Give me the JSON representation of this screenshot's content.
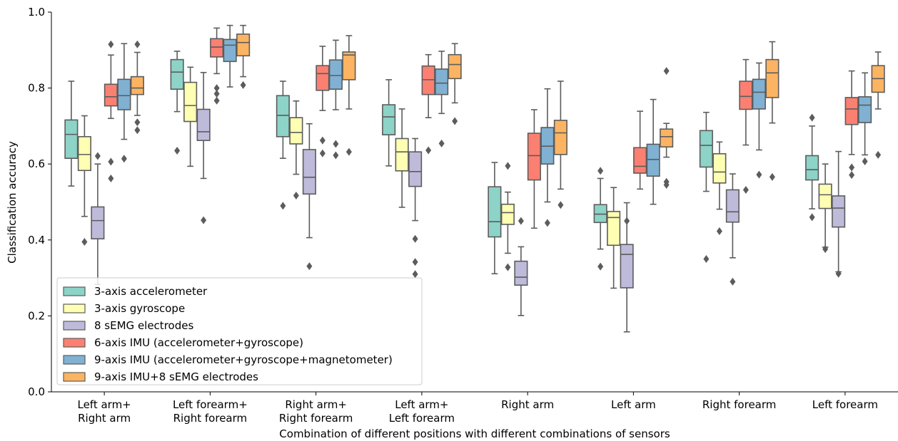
{
  "chart_data": {
    "type": "box",
    "title": "",
    "xlabel": "Combination of different positions with different combinations of sensors",
    "ylabel": "Classification accuracy",
    "ylim": [
      0.0,
      1.0
    ],
    "yticks": [
      "0.0",
      "0.2",
      "0.4",
      "0.6",
      "0.8",
      "1.0"
    ],
    "grid": false,
    "legend_position": "lower-left",
    "categories": [
      [
        "Left arm+",
        "Right arm"
      ],
      [
        "Left forearm+",
        "Right forearm"
      ],
      [
        "Right arm+",
        "Right forearm"
      ],
      [
        "Left arm+",
        "Left forearm"
      ],
      [
        "Right arm"
      ],
      [
        "Left arm"
      ],
      [
        "Right forearm"
      ],
      [
        "Left forearm"
      ]
    ],
    "series": [
      {
        "name": "3-axis accelerometer",
        "color": "#8dd3c7",
        "boxes": [
          {
            "q1": 0.615,
            "median": 0.678,
            "q3": 0.716,
            "whisker_low": 0.542,
            "whisker_high": 0.818,
            "outliers": []
          },
          {
            "q1": 0.797,
            "median": 0.842,
            "q3": 0.875,
            "whisker_low": 0.738,
            "whisker_high": 0.897,
            "outliers": [
              0.635
            ]
          },
          {
            "q1": 0.672,
            "median": 0.728,
            "q3": 0.78,
            "whisker_low": 0.615,
            "whisker_high": 0.818,
            "outliers": [
              0.49
            ]
          },
          {
            "q1": 0.677,
            "median": 0.724,
            "q3": 0.756,
            "whisker_low": 0.595,
            "whisker_high": 0.822,
            "outliers": []
          },
          {
            "q1": 0.408,
            "median": 0.448,
            "q3": 0.54,
            "whisker_low": 0.311,
            "whisker_high": 0.604,
            "outliers": []
          },
          {
            "q1": 0.446,
            "median": 0.468,
            "q3": 0.493,
            "whisker_low": 0.376,
            "whisker_high": 0.562,
            "outliers": [
              0.582,
              0.33
            ]
          },
          {
            "q1": 0.592,
            "median": 0.649,
            "q3": 0.688,
            "whisker_low": 0.528,
            "whisker_high": 0.736,
            "outliers": [
              0.35
            ]
          },
          {
            "q1": 0.558,
            "median": 0.585,
            "q3": 0.622,
            "whisker_low": 0.482,
            "whisker_high": 0.7,
            "outliers": [
              0.722,
              0.46
            ]
          }
        ]
      },
      {
        "name": "3-axis gyroscope",
        "color": "#ffffb3",
        "boxes": [
          {
            "q1": 0.583,
            "median": 0.625,
            "q3": 0.672,
            "whisker_low": 0.462,
            "whisker_high": 0.727,
            "outliers": [
              0.395
            ]
          },
          {
            "q1": 0.712,
            "median": 0.754,
            "q3": 0.815,
            "whisker_low": 0.594,
            "whisker_high": 0.855,
            "outliers": []
          },
          {
            "q1": 0.653,
            "median": 0.683,
            "q3": 0.722,
            "whisker_low": 0.573,
            "whisker_high": 0.766,
            "outliers": [
              0.517
            ]
          },
          {
            "q1": 0.582,
            "median": 0.632,
            "q3": 0.667,
            "whisker_low": 0.486,
            "whisker_high": 0.745,
            "outliers": []
          },
          {
            "q1": 0.441,
            "median": 0.472,
            "q3": 0.494,
            "whisker_low": 0.365,
            "whisker_high": 0.526,
            "outliers": [
              0.595,
              0.328
            ]
          },
          {
            "q1": 0.386,
            "median": 0.459,
            "q3": 0.475,
            "whisker_low": 0.273,
            "whisker_high": 0.538,
            "outliers": []
          },
          {
            "q1": 0.55,
            "median": 0.579,
            "q3": 0.627,
            "whisker_low": 0.481,
            "whisker_high": 0.658,
            "outliers": [
              0.423
            ]
          },
          {
            "q1": 0.483,
            "median": 0.519,
            "q3": 0.547,
            "whisker_low": 0.381,
            "whisker_high": 0.6,
            "outliers": [
              0.376
            ]
          }
        ]
      },
      {
        "name": "8 sEMG electrodes",
        "color": "#bebada",
        "boxes": [
          {
            "q1": 0.403,
            "median": 0.451,
            "q3": 0.487,
            "whisker_low": 0.283,
            "whisker_high": 0.6,
            "outliers": [
              0.621
            ]
          },
          {
            "q1": 0.662,
            "median": 0.685,
            "q3": 0.744,
            "whisker_low": 0.562,
            "whisker_high": 0.841,
            "outliers": [
              0.452
            ]
          },
          {
            "q1": 0.521,
            "median": 0.565,
            "q3": 0.638,
            "whisker_low": 0.406,
            "whisker_high": 0.706,
            "outliers": [
              0.331
            ]
          },
          {
            "q1": 0.541,
            "median": 0.58,
            "q3": 0.632,
            "whisker_low": 0.451,
            "whisker_high": 0.667,
            "outliers": [
              0.403,
              0.342,
              0.31
            ]
          },
          {
            "q1": 0.281,
            "median": 0.302,
            "q3": 0.344,
            "whisker_low": 0.201,
            "whisker_high": 0.382,
            "outliers": [
              0.45
            ]
          },
          {
            "q1": 0.274,
            "median": 0.362,
            "q3": 0.388,
            "whisker_low": 0.158,
            "whisker_high": 0.498,
            "outliers": [
              0.45
            ]
          },
          {
            "q1": 0.447,
            "median": 0.474,
            "q3": 0.532,
            "whisker_low": 0.353,
            "whisker_high": 0.574,
            "outliers": [
              0.29
            ]
          },
          {
            "q1": 0.434,
            "median": 0.484,
            "q3": 0.516,
            "whisker_low": 0.316,
            "whisker_high": 0.633,
            "outliers": [
              0.311
            ]
          }
        ]
      },
      {
        "name": "6-axis IMU (accelerometer+gyroscope)",
        "color": "#fb8072",
        "boxes": [
          {
            "q1": 0.753,
            "median": 0.777,
            "q3": 0.81,
            "whisker_low": 0.72,
            "whisker_high": 0.887,
            "outliers": [
              0.915,
              0.606,
              0.562
            ]
          },
          {
            "q1": 0.882,
            "median": 0.908,
            "q3": 0.93,
            "whisker_low": 0.838,
            "whisker_high": 0.958,
            "outliers": [
              0.8,
              0.785,
              0.767
            ]
          },
          {
            "q1": 0.794,
            "median": 0.838,
            "q3": 0.859,
            "whisker_low": 0.741,
            "whisker_high": 0.91,
            "outliers": [
              0.662,
              0.628
            ]
          },
          {
            "q1": 0.783,
            "median": 0.822,
            "q3": 0.858,
            "whisker_low": 0.722,
            "whisker_high": 0.888,
            "outliers": [
              0.636
            ]
          },
          {
            "q1": 0.558,
            "median": 0.622,
            "q3": 0.681,
            "whisker_low": 0.431,
            "whisker_high": 0.743,
            "outliers": []
          },
          {
            "q1": 0.576,
            "median": 0.594,
            "q3": 0.643,
            "whisker_low": 0.534,
            "whisker_high": 0.739,
            "outliers": []
          },
          {
            "q1": 0.744,
            "median": 0.778,
            "q3": 0.818,
            "whisker_low": 0.65,
            "whisker_high": 0.875,
            "outliers": [
              0.532
            ]
          },
          {
            "q1": 0.704,
            "median": 0.745,
            "q3": 0.775,
            "whisker_low": 0.625,
            "whisker_high": 0.845,
            "outliers": [
              0.591,
              0.571
            ]
          }
        ]
      },
      {
        "name": "9-axis IMU (accelerometer+gyroscope+magnetometer)",
        "color": "#80b1d3",
        "boxes": [
          {
            "q1": 0.743,
            "median": 0.78,
            "q3": 0.823,
            "whisker_low": 0.665,
            "whisker_high": 0.917,
            "outliers": [
              0.614
            ]
          },
          {
            "q1": 0.87,
            "median": 0.913,
            "q3": 0.928,
            "whisker_low": 0.803,
            "whisker_high": 0.965,
            "outliers": []
          },
          {
            "q1": 0.797,
            "median": 0.833,
            "q3": 0.874,
            "whisker_low": 0.743,
            "whisker_high": 0.926,
            "outliers": [
              0.653,
              0.623
            ]
          },
          {
            "q1": 0.783,
            "median": 0.813,
            "q3": 0.85,
            "whisker_low": 0.733,
            "whisker_high": 0.897,
            "outliers": [
              0.654
            ]
          },
          {
            "q1": 0.6,
            "median": 0.647,
            "q3": 0.696,
            "whisker_low": 0.5,
            "whisker_high": 0.798,
            "outliers": [
              0.445
            ]
          },
          {
            "q1": 0.568,
            "median": 0.612,
            "q3": 0.652,
            "whisker_low": 0.494,
            "whisker_high": 0.77,
            "outliers": []
          },
          {
            "q1": 0.745,
            "median": 0.789,
            "q3": 0.823,
            "whisker_low": 0.637,
            "whisker_high": 0.866,
            "outliers": [
              0.572
            ]
          },
          {
            "q1": 0.709,
            "median": 0.755,
            "q3": 0.777,
            "whisker_low": 0.624,
            "whisker_high": 0.84,
            "outliers": [
              0.607
            ]
          }
        ]
      },
      {
        "name": "9-axis IMU+8 sEMG electrodes",
        "color": "#fdb462",
        "boxes": [
          {
            "q1": 0.783,
            "median": 0.8,
            "q3": 0.83,
            "whisker_low": 0.728,
            "whisker_high": 0.894,
            "outliers": [
              0.915,
              0.71,
              0.689
            ]
          },
          {
            "q1": 0.885,
            "median": 0.92,
            "q3": 0.942,
            "whisker_low": 0.83,
            "whisker_high": 0.965,
            "outliers": [
              0.808
            ]
          },
          {
            "q1": 0.822,
            "median": 0.887,
            "q3": 0.895,
            "whisker_low": 0.745,
            "whisker_high": 0.938,
            "outliers": [
              0.632
            ]
          },
          {
            "q1": 0.825,
            "median": 0.862,
            "q3": 0.888,
            "whisker_low": 0.761,
            "whisker_high": 0.917,
            "outliers": [
              0.713
            ]
          },
          {
            "q1": 0.625,
            "median": 0.682,
            "q3": 0.715,
            "whisker_low": 0.534,
            "whisker_high": 0.818,
            "outliers": [
              0.492
            ]
          },
          {
            "q1": 0.645,
            "median": 0.672,
            "q3": 0.692,
            "whisker_low": 0.618,
            "whisker_high": 0.707,
            "outliers": [
              0.845,
              0.553,
              0.545
            ]
          },
          {
            "q1": 0.775,
            "median": 0.84,
            "q3": 0.875,
            "whisker_low": 0.708,
            "whisker_high": 0.922,
            "outliers": [
              0.566
            ]
          },
          {
            "q1": 0.789,
            "median": 0.825,
            "q3": 0.859,
            "whisker_low": 0.745,
            "whisker_high": 0.895,
            "outliers": [
              0.624
            ]
          }
        ]
      }
    ]
  }
}
